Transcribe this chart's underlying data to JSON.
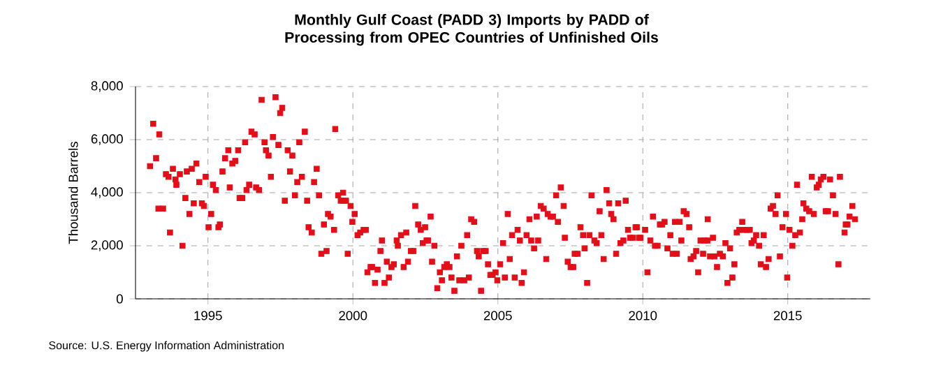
{
  "chart_data": {
    "type": "scatter",
    "title": "Monthly Gulf Coast (PADD 3) Imports by PADD of Processing from OPEC Countries of Unfinished Oils",
    "ylabel": "Thousand Barrels",
    "annotations": [
      "Source: U.S. Energy Information Administration"
    ],
    "xlim": [
      1992.5,
      2017.85
    ],
    "xticks": [
      1995,
      2000,
      2005,
      2010,
      2015
    ],
    "ylim": [
      0,
      8000
    ],
    "yticks": [
      0,
      {
        "value": 2000,
        "label": "2,000"
      },
      {
        "value": 4000,
        "label": "4,000"
      },
      {
        "value": 6000,
        "label": "6,000"
      },
      {
        "value": 8000,
        "label": "8,000"
      }
    ],
    "grid": true,
    "marker": "square",
    "color": "#e0101a",
    "x": [
      1993.0,
      1993.11,
      1993.21,
      1993.32,
      1993.29,
      1993.45,
      1993.55,
      1993.64,
      1993.69,
      1993.79,
      1993.88,
      1993.91,
      1994.03,
      1994.12,
      1994.22,
      1994.27,
      1994.36,
      1994.44,
      1994.51,
      1994.6,
      1994.7,
      1994.79,
      1994.86,
      1994.92,
      1995.02,
      1995.11,
      1995.17,
      1995.27,
      1995.36,
      1995.41,
      1995.5,
      1995.59,
      1995.7,
      1995.75,
      1995.84,
      1995.94,
      1996.04,
      1996.09,
      1996.18,
      1996.28,
      1996.33,
      1996.42,
      1996.5,
      1996.61,
      1996.66,
      1996.76,
      1996.85,
      1996.95,
      1997.0,
      1997.09,
      1997.17,
      1997.24,
      1997.33,
      1997.43,
      1997.49,
      1997.56,
      1997.65,
      1997.75,
      1997.83,
      1997.91,
      1998.0,
      1998.08,
      1998.15,
      1998.24,
      1998.34,
      1998.42,
      1998.47,
      1998.58,
      1998.66,
      1998.75,
      1998.83,
      1998.91,
      1999.0,
      1999.09,
      1999.14,
      1999.23,
      1999.35,
      1999.39,
      1999.49,
      1999.58,
      1999.66,
      1999.68,
      1999.76,
      1999.82,
      1999.92,
      1999.98,
      2000.06,
      2000.16,
      2000.25,
      2000.37,
      2000.45,
      2000.5,
      2000.61,
      2000.66,
      2000.76,
      2000.85,
      2000.95,
      2001.0,
      2001.09,
      2001.17,
      2001.24,
      2001.33,
      2001.41,
      2001.51,
      2001.55,
      2001.66,
      2001.75,
      2001.84,
      2001.9,
      2002.0,
      2002.09,
      2002.15,
      2002.25,
      2002.34,
      2002.41,
      2002.49,
      2002.54,
      2002.59,
      2002.68,
      2002.73,
      2002.81,
      2002.91,
      2003.0,
      2003.07,
      2003.15,
      2003.24,
      2003.33,
      2003.4,
      2003.5,
      2003.59,
      2003.67,
      2003.74,
      2003.84,
      2003.94,
      2004.0,
      2004.08,
      2004.18,
      2004.28,
      2004.34,
      2004.42,
      2004.49,
      2004.58,
      2004.66,
      2004.74,
      2004.82,
      2004.92,
      2004.98,
      2005.08,
      2005.18,
      2005.24,
      2005.34,
      2005.41,
      2005.49,
      2005.58,
      2005.68,
      2005.76,
      2005.82,
      2005.9,
      2005.99,
      2006.09,
      2006.15,
      2006.25,
      2006.34,
      2006.39,
      2006.48,
      2006.58,
      2006.67,
      2006.72,
      2006.82,
      2006.9,
      2007.01,
      2007.07,
      2007.17,
      2007.27,
      2007.31,
      2007.41,
      2007.51,
      2007.6,
      2007.65,
      2007.75,
      2007.85,
      2007.94,
      2007.99,
      2008.08,
      2008.16,
      2008.23,
      2008.33,
      2008.41,
      2008.51,
      2008.57,
      2008.65,
      2008.75,
      2008.84,
      2008.91,
      2008.99,
      2009.08,
      2009.15,
      2009.23,
      2009.33,
      2009.41,
      2009.49,
      2009.56,
      2009.66,
      2009.75,
      2009.8,
      2009.87,
      2009.92,
      2010.08,
      2010.16,
      2010.26,
      2010.35,
      2010.42,
      2010.51,
      2010.59,
      2010.67,
      2010.75,
      2010.85,
      2010.95,
      2011.03,
      2011.11,
      2011.17,
      2011.27,
      2011.33,
      2011.41,
      2011.51,
      2011.6,
      2011.65,
      2011.75,
      2011.84,
      2011.91,
      2011.99,
      2012.08,
      2012.13,
      2012.23,
      2012.24,
      2012.32,
      2012.42,
      2012.47,
      2012.56,
      2012.66,
      2012.76,
      2012.85,
      2012.92,
      2013.01,
      2013.09,
      2013.16,
      2013.24,
      2013.33,
      2013.43,
      2013.49,
      2013.59,
      2013.69,
      2013.75,
      2013.83,
      2013.91,
      2014.01,
      2014.07,
      2014.17,
      2014.25,
      2014.34,
      2014.41,
      2014.49,
      2014.58,
      2014.65,
      2014.73,
      2014.82,
      2014.94,
      2014.98,
      2015.06,
      2015.16,
      2015.26,
      2015.32,
      2015.42,
      2015.5,
      2015.54,
      2015.64,
      2015.74,
      2015.83,
      2015.9,
      2016.0,
      2016.07,
      2016.14,
      2016.23,
      2016.31,
      2016.39,
      2016.46,
      2016.56,
      2016.65,
      2016.75,
      2016.8,
      2016.96,
      2017.0,
      2017.06,
      2017.13,
      2017.23,
      2017.32
    ],
    "values": [
      5000,
      6600,
      5300,
      6200,
      3400,
      3400,
      4700,
      4600,
      2500,
      4900,
      4500,
      4300,
      4700,
      2000,
      3800,
      4800,
      3200,
      4900,
      3600,
      5100,
      4400,
      3600,
      3500,
      4600,
      2700,
      3200,
      4300,
      4100,
      2700,
      2800,
      4800,
      5300,
      5600,
      4200,
      5100,
      5200,
      5600,
      3800,
      3800,
      5900,
      4100,
      4300,
      6300,
      6200,
      4200,
      4100,
      7500,
      5900,
      5600,
      5400,
      4600,
      6100,
      7600,
      5800,
      7000,
      7200,
      3700,
      5600,
      4800,
      5400,
      3900,
      4400,
      5900,
      4600,
      6300,
      3700,
      2700,
      2500,
      4400,
      4900,
      3900,
      1700,
      2800,
      1800,
      3200,
      3100,
      2600,
      6400,
      3900,
      3700,
      4000,
      3700,
      3700,
      1700,
      3500,
      2900,
      3200,
      2400,
      2500,
      2600,
      2600,
      1000,
      1200,
      1200,
      600,
      1100,
      1800,
      2200,
      600,
      1400,
      800,
      1200,
      1300,
      2200,
      2000,
      2400,
      1200,
      2500,
      1400,
      1800,
      1800,
      3500,
      2800,
      2600,
      2100,
      2700,
      2200,
      2200,
      3100,
      1400,
      2000,
      400,
      1000,
      700,
      1200,
      1300,
      1200,
      800,
      300,
      1600,
      700,
      2000,
      700,
      2400,
      800,
      3000,
      2900,
      1800,
      1600,
      300,
      1800,
      1800,
      1300,
      900,
      900,
      1000,
      700,
      1300,
      2100,
      800,
      3200,
      1500,
      2400,
      800,
      2600,
      2200,
      600,
      1000,
      2400,
      3000,
      2200,
      1900,
      3100,
      2200,
      3500,
      3400,
      1500,
      3200,
      3100,
      3100,
      3900,
      2900,
      4200,
      3500,
      2300,
      1400,
      1200,
      1200,
      1700,
      1700,
      2700,
      2400,
      1900,
      600,
      2400,
      3900,
      2200,
      2100,
      3300,
      2400,
      1500,
      4100,
      3600,
      3200,
      3000,
      1700,
      3600,
      2100,
      2200,
      3700,
      2600,
      2300,
      2300,
      2700,
      2700,
      2300,
      2300,
      2600,
      1000,
      2200,
      3100,
      2000,
      2000,
      2800,
      2800,
      2900,
      1900,
      2400,
      1700,
      2900,
      1700,
      2900,
      2200,
      3300,
      3200,
      2700,
      1500,
      1600,
      1800,
      1000,
      2200,
      1700,
      2200,
      2200,
      3000,
      1600,
      2300,
      1600,
      1200,
      1700,
      1600,
      2100,
      600,
      1900,
      800,
      1300,
      2500,
      2600,
      2900,
      2600,
      2600,
      2600,
      2100,
      2200,
      2400,
      2000,
      1300,
      2400,
      1200,
      1500,
      3400,
      3500,
      3200,
      3900,
      1600,
      2700,
      3200,
      800,
      2600,
      2000,
      2400,
      4300,
      2500,
      3000,
      3600,
      3400,
      3300,
      4600,
      3200,
      4200,
      4300,
      4500,
      4600,
      3300,
      3300,
      4500,
      3900,
      3200,
      1300,
      4600,
      2500,
      2800,
      2800,
      3100,
      3500,
      3000
    ]
  }
}
